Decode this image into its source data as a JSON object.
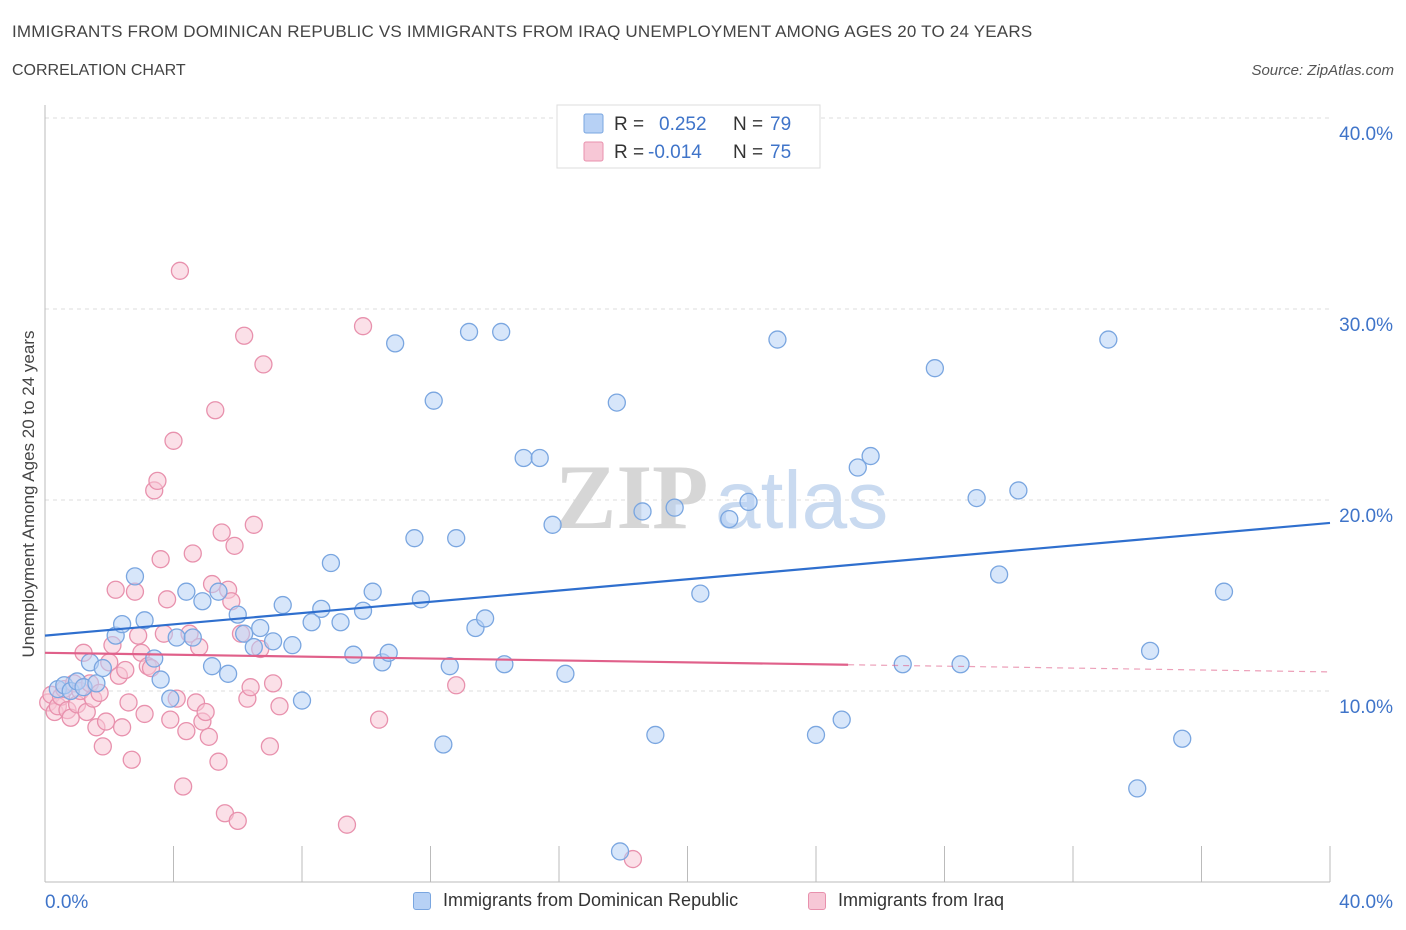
{
  "header": {
    "title": "IMMIGRANTS FROM DOMINICAN REPUBLIC VS IMMIGRANTS FROM IRAQ UNEMPLOYMENT AMONG AGES 20 TO 24 YEARS",
    "subtitle": "CORRELATION CHART",
    "source": "Source: ZipAtlas.com"
  },
  "colors": {
    "blue_fill": "#b7d1f5",
    "blue_stroke": "#7aa6e0",
    "blue_line": "#2f6fce",
    "pink_fill": "#f7c7d6",
    "pink_stroke": "#e891ad",
    "pink_line": "#e0608a",
    "axis_text": "#3f74c9",
    "grid": "#dcdcdc"
  },
  "stats": {
    "blue": {
      "r_label": "R =",
      "r": "0.252",
      "n_label": "N =",
      "n": "79"
    },
    "pink": {
      "r_label": "R =",
      "r": "-0.014",
      "n_label": "N =",
      "n": "75"
    }
  },
  "watermark": {
    "zip": "ZIP",
    "atlas": "atlas"
  },
  "chart_data": {
    "type": "scatter",
    "title": "IMMIGRANTS FROM DOMINICAN REPUBLIC VS IMMIGRANTS FROM IRAQ UNEMPLOYMENT AMONG AGES 20 TO 24 YEARS",
    "xlabel": "",
    "ylabel": "Unemployment Among Ages 20 to 24 years",
    "xlim": [
      0,
      40
    ],
    "ylim": [
      0,
      40
    ],
    "x_tick_labels": [
      "0.0%",
      "40.0%"
    ],
    "y_ticks": [
      10,
      20,
      30,
      40
    ],
    "y_tick_labels": [
      "10.0%",
      "20.0%",
      "30.0%",
      "40.0%"
    ],
    "grid": true,
    "legend": "bottom-center",
    "series": [
      {
        "name": "Immigrants from Dominican Republic",
        "color": "blue",
        "trend": {
          "x": [
            0,
            40
          ],
          "y": [
            12.9,
            18.8
          ],
          "dashed_from": null
        },
        "points": [
          [
            0.4,
            10.1
          ],
          [
            0.6,
            10.3
          ],
          [
            0.8,
            10.0
          ],
          [
            1.0,
            10.5
          ],
          [
            1.2,
            10.2
          ],
          [
            1.4,
            11.5
          ],
          [
            1.6,
            10.4
          ],
          [
            1.8,
            11.2
          ],
          [
            2.2,
            12.9
          ],
          [
            2.4,
            13.5
          ],
          [
            2.8,
            16.0
          ],
          [
            3.1,
            13.7
          ],
          [
            3.4,
            11.7
          ],
          [
            3.6,
            10.6
          ],
          [
            3.9,
            9.6
          ],
          [
            4.1,
            12.8
          ],
          [
            4.4,
            15.2
          ],
          [
            4.6,
            12.8
          ],
          [
            4.9,
            14.7
          ],
          [
            5.2,
            11.3
          ],
          [
            5.4,
            15.2
          ],
          [
            5.7,
            10.9
          ],
          [
            6.0,
            14.0
          ],
          [
            6.2,
            13.0
          ],
          [
            6.5,
            12.3
          ],
          [
            6.7,
            13.3
          ],
          [
            7.1,
            12.6
          ],
          [
            7.4,
            14.5
          ],
          [
            7.7,
            12.4
          ],
          [
            8.0,
            9.5
          ],
          [
            8.3,
            13.6
          ],
          [
            8.6,
            14.3
          ],
          [
            8.9,
            16.7
          ],
          [
            9.2,
            13.6
          ],
          [
            9.6,
            11.9
          ],
          [
            9.9,
            14.2
          ],
          [
            10.2,
            15.2
          ],
          [
            10.5,
            11.5
          ],
          [
            10.7,
            12.0
          ],
          [
            10.9,
            28.2
          ],
          [
            11.5,
            18.0
          ],
          [
            11.7,
            14.8
          ],
          [
            12.1,
            25.2
          ],
          [
            12.4,
            7.2
          ],
          [
            12.6,
            11.3
          ],
          [
            12.8,
            18.0
          ],
          [
            13.2,
            28.8
          ],
          [
            13.4,
            13.3
          ],
          [
            13.7,
            13.8
          ],
          [
            14.2,
            28.8
          ],
          [
            14.3,
            11.4
          ],
          [
            14.9,
            22.2
          ],
          [
            15.4,
            22.2
          ],
          [
            15.8,
            18.7
          ],
          [
            16.2,
            10.9
          ],
          [
            17.8,
            25.1
          ],
          [
            17.9,
            1.6
          ],
          [
            18.6,
            19.4
          ],
          [
            19.0,
            7.7
          ],
          [
            19.6,
            19.6
          ],
          [
            20.4,
            15.1
          ],
          [
            21.3,
            19.0
          ],
          [
            21.9,
            19.9
          ],
          [
            22.8,
            28.4
          ],
          [
            24.0,
            7.7
          ],
          [
            24.8,
            8.5
          ],
          [
            25.3,
            21.7
          ],
          [
            25.7,
            22.3
          ],
          [
            26.7,
            11.4
          ],
          [
            27.7,
            26.9
          ],
          [
            28.5,
            11.4
          ],
          [
            29.0,
            20.1
          ],
          [
            29.7,
            16.1
          ],
          [
            30.3,
            20.5
          ],
          [
            33.1,
            28.4
          ],
          [
            34.0,
            4.9
          ],
          [
            34.4,
            12.1
          ],
          [
            35.4,
            7.5
          ],
          [
            36.7,
            15.2
          ]
        ]
      },
      {
        "name": "Immigrants from Iraq",
        "color": "pink",
        "trend": {
          "x": [
            0,
            40
          ],
          "y": [
            12.0,
            11.0
          ],
          "dashed_from": 25
        },
        "points": [
          [
            0.1,
            9.4
          ],
          [
            0.2,
            9.8
          ],
          [
            0.3,
            8.9
          ],
          [
            0.4,
            9.2
          ],
          [
            0.5,
            9.7
          ],
          [
            0.6,
            10.1
          ],
          [
            0.7,
            9.0
          ],
          [
            0.8,
            8.6
          ],
          [
            0.9,
            10.4
          ],
          [
            1.0,
            9.3
          ],
          [
            1.1,
            10.0
          ],
          [
            1.2,
            12.0
          ],
          [
            1.3,
            8.9
          ],
          [
            1.4,
            10.4
          ],
          [
            1.5,
            9.6
          ],
          [
            1.6,
            8.1
          ],
          [
            1.7,
            9.9
          ],
          [
            1.8,
            7.1
          ],
          [
            1.9,
            8.4
          ],
          [
            2.0,
            11.5
          ],
          [
            2.1,
            12.4
          ],
          [
            2.2,
            15.3
          ],
          [
            2.3,
            10.8
          ],
          [
            2.4,
            8.1
          ],
          [
            2.5,
            11.1
          ],
          [
            2.6,
            9.4
          ],
          [
            2.7,
            6.4
          ],
          [
            2.8,
            15.2
          ],
          [
            2.9,
            12.9
          ],
          [
            3.0,
            12.0
          ],
          [
            3.1,
            8.8
          ],
          [
            3.2,
            11.3
          ],
          [
            3.3,
            11.2
          ],
          [
            3.4,
            20.5
          ],
          [
            3.5,
            21.0
          ],
          [
            3.6,
            16.9
          ],
          [
            3.7,
            13.0
          ],
          [
            3.8,
            14.8
          ],
          [
            3.9,
            8.5
          ],
          [
            4.0,
            23.1
          ],
          [
            4.1,
            9.6
          ],
          [
            4.2,
            32.0
          ],
          [
            4.3,
            5.0
          ],
          [
            4.4,
            7.9
          ],
          [
            4.5,
            13.0
          ],
          [
            4.6,
            17.2
          ],
          [
            4.7,
            9.4
          ],
          [
            4.8,
            12.3
          ],
          [
            4.9,
            8.4
          ],
          [
            5.0,
            8.9
          ],
          [
            5.1,
            7.6
          ],
          [
            5.2,
            15.6
          ],
          [
            5.3,
            24.7
          ],
          [
            5.4,
            6.3
          ],
          [
            5.5,
            18.3
          ],
          [
            5.6,
            3.6
          ],
          [
            5.7,
            15.3
          ],
          [
            5.8,
            14.7
          ],
          [
            5.9,
            17.6
          ],
          [
            6.0,
            3.2
          ],
          [
            6.1,
            13.0
          ],
          [
            6.2,
            28.6
          ],
          [
            6.3,
            9.6
          ],
          [
            6.4,
            10.2
          ],
          [
            6.5,
            18.7
          ],
          [
            6.7,
            12.2
          ],
          [
            6.8,
            27.1
          ],
          [
            7.0,
            7.1
          ],
          [
            7.1,
            10.4
          ],
          [
            7.3,
            9.2
          ],
          [
            9.4,
            3.0
          ],
          [
            9.9,
            29.1
          ],
          [
            10.4,
            8.5
          ],
          [
            12.8,
            10.3
          ],
          [
            18.3,
            1.2
          ]
        ]
      }
    ]
  },
  "legend": {
    "blue_label": "Immigrants from Dominican Republic",
    "pink_label": "Immigrants from Iraq"
  }
}
